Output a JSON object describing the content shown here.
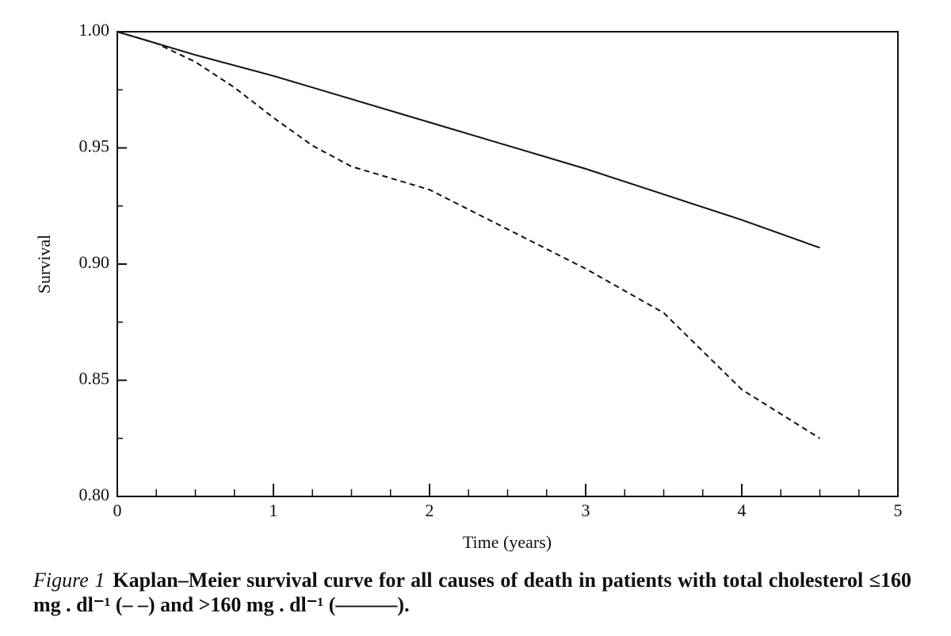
{
  "chart_data": {
    "type": "line",
    "ylabel": "Survival",
    "xlabel": "Time (years)",
    "caption_label": "Figure 1",
    "caption": "Kaplan–Meier survival curve for all causes of death in patients with total cholesterol ≤160 mg . dl⁻¹ (– –) and >160 mg . dl⁻¹ (———).",
    "xlim": [
      0,
      5
    ],
    "xticks": [
      0,
      1,
      2,
      3,
      4,
      5
    ],
    "xminorticks": [
      0.25,
      0.5,
      0.75,
      1.25,
      1.5,
      1.75,
      2.25,
      2.5,
      2.75,
      3.25,
      3.5,
      3.75,
      4.25,
      4.5,
      4.75
    ],
    "ylim": [
      0.8,
      1.0
    ],
    "yticks": [
      {
        "value": 0.8,
        "label": "0.80"
      },
      {
        "value": 0.85,
        "label": "0.85"
      },
      {
        "value": 0.9,
        "label": "0.90"
      },
      {
        "value": 0.95,
        "label": "0.95"
      },
      {
        "value": 1.0,
        "label": "1.00"
      }
    ],
    "yminorticks": [
      0.825,
      0.875,
      0.925,
      0.975
    ],
    "series": [
      {
        "color": "#111111",
        "line_style": "solid",
        "x": [
          0,
          0.5,
          1,
          1.5,
          2,
          2.5,
          3,
          3.5,
          4,
          4.5
        ],
        "values": [
          1.0,
          0.99,
          0.981,
          0.971,
          0.961,
          0.951,
          0.941,
          0.93,
          0.919,
          0.907
        ]
      },
      {
        "color": "#111111",
        "line_style": "dashed",
        "x": [
          0,
          0.25,
          0.5,
          0.75,
          1,
          1.25,
          1.5,
          2,
          2.5,
          3,
          3.5,
          4,
          4.5
        ],
        "values": [
          1.0,
          0.995,
          0.987,
          0.976,
          0.963,
          0.951,
          0.942,
          0.932,
          0.915,
          0.898,
          0.879,
          0.846,
          0.825
        ]
      }
    ]
  }
}
